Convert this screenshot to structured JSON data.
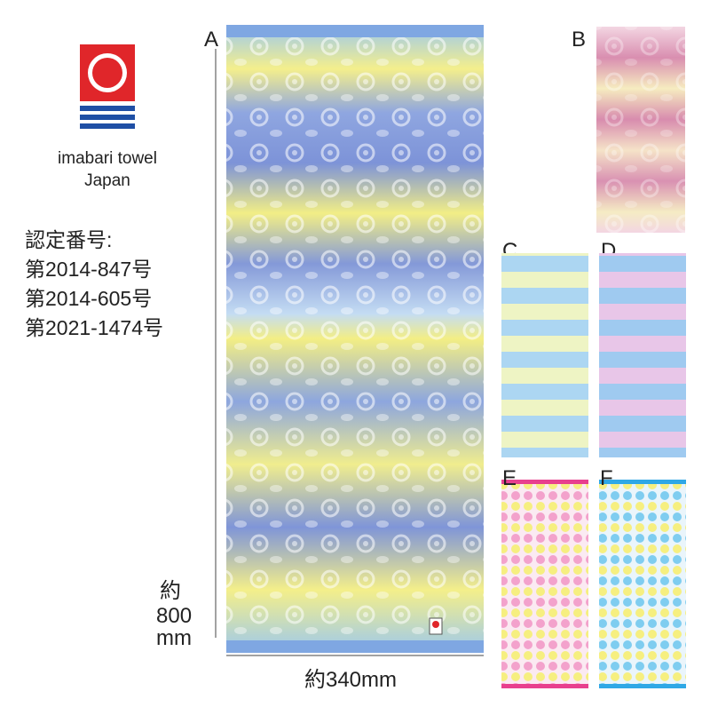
{
  "logo": {
    "line1": "imabari towel",
    "line2": "Japan"
  },
  "certification": {
    "heading": "認定番号:",
    "numbers": [
      "第2014-847号",
      "第2014-605号",
      "第2021-1474号"
    ]
  },
  "towels": {
    "a": "A",
    "b": "B",
    "c": "C",
    "d": "D",
    "e": "E",
    "f": "F"
  },
  "dimensions": {
    "height_prefix": "約",
    "height_value": "800",
    "height_unit": "mm",
    "width": "約340mm"
  }
}
